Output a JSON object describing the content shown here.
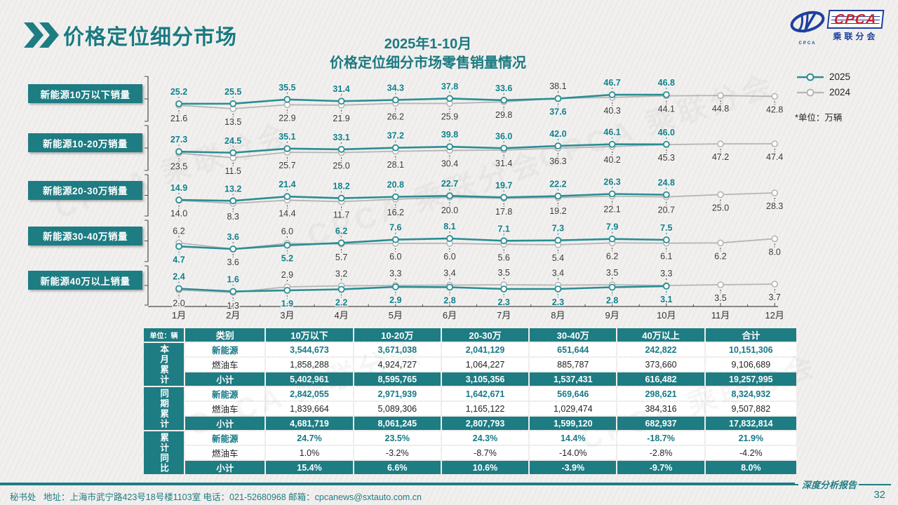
{
  "header": {
    "title": "价格定位细分市场",
    "chart_title_1": "2025年1-10月",
    "chart_title_2": "价格定位细分市场零售销量情况",
    "logo_text": "CPCA",
    "logo_sub": "乘联分会",
    "logo_mark_caption": "CPCA"
  },
  "legend": {
    "items": [
      {
        "label": "2025"
      },
      {
        "label": "2024"
      }
    ],
    "unit_note": "*单位：万辆"
  },
  "colors": {
    "accent": "#1e7c83",
    "line_2025": "#2a8d94",
    "line_2024": "#b5b5b5",
    "label_2025": "#11808d",
    "label_2024": "#3b3b3b",
    "axis": "#4a4a4a",
    "logo_blue": "#1d3f9e",
    "logo_red": "#cf2329"
  },
  "watermark_text": "CPCA 乘联分会",
  "chart_data": {
    "type": "line",
    "title": "2025年1-10月 价格定位细分市场零售销量情况",
    "unit": "万辆",
    "legend_position": "top-right",
    "grid": false,
    "x_labels": [
      "1月",
      "2月",
      "3月",
      "4月",
      "5月",
      "6月",
      "7月",
      "8月",
      "9月",
      "10月",
      "11月",
      "12月"
    ],
    "panels": [
      {
        "label": "新能源10万以下销量",
        "series": [
          {
            "name": "2025",
            "values": [
              25.2,
              25.5,
              35.5,
              31.4,
              34.3,
              37.8,
              33.6,
              37.6,
              46.7,
              46.8
            ]
          },
          {
            "name": "2024",
            "values": [
              21.6,
              13.5,
              22.9,
              21.9,
              26.2,
              25.9,
              29.8,
              38.1,
              40.3,
              44.1,
              44.8,
              42.8
            ]
          }
        ]
      },
      {
        "label": "新能源10-20万销量",
        "series": [
          {
            "name": "2025",
            "values": [
              27.3,
              24.5,
              35.1,
              33.1,
              37.2,
              39.8,
              36.0,
              42.0,
              46.1,
              46.0
            ]
          },
          {
            "name": "2024",
            "values": [
              23.5,
              11.5,
              25.7,
              25.0,
              28.1,
              30.4,
              31.4,
              36.3,
              40.2,
              45.3,
              47.2,
              47.4
            ]
          }
        ]
      },
      {
        "label": "新能源20-30万销量",
        "series": [
          {
            "name": "2025",
            "values": [
              14.9,
              13.2,
              21.4,
              18.2,
              20.8,
              22.7,
              19.7,
              22.2,
              26.3,
              24.8
            ]
          },
          {
            "name": "2024",
            "values": [
              14.0,
              8.3,
              14.4,
              11.7,
              16.2,
              20.0,
              17.8,
              19.2,
              22.1,
              20.7,
              25.0,
              28.3
            ]
          }
        ]
      },
      {
        "label": "新能源30-40万销量",
        "series": [
          {
            "name": "2025",
            "values": [
              4.7,
              3.6,
              5.2,
              6.2,
              7.6,
              8.1,
              7.1,
              7.3,
              7.9,
              7.5
            ]
          },
          {
            "name": "2024",
            "values": [
              6.2,
              3.6,
              6.0,
              5.7,
              6.0,
              6.0,
              5.6,
              5.4,
              6.2,
              6.1,
              6.2,
              8.0
            ]
          }
        ]
      },
      {
        "label": "新能源40万以上销量",
        "series": [
          {
            "name": "2025",
            "values": [
              2.4,
              1.6,
              1.9,
              2.2,
              2.9,
              2.8,
              2.3,
              2.3,
              2.8,
              3.1
            ]
          },
          {
            "name": "2024",
            "values": [
              2.0,
              1.3,
              2.9,
              3.2,
              3.3,
              3.4,
              3.5,
              3.4,
              3.5,
              3.3,
              3.5,
              3.7
            ]
          }
        ]
      }
    ]
  },
  "table": {
    "unit_label": "单位：辆",
    "columns": [
      "类别",
      "10万以下",
      "10-20万",
      "20-30万",
      "30-40万",
      "40万以上",
      "合计"
    ],
    "groups": [
      {
        "name": "本月累计",
        "rows": [
          {
            "label": "新能源",
            "style": "nev",
            "cells": [
              "3,544,673",
              "3,671,038",
              "2,041,129",
              "651,644",
              "242,822",
              "10,151,306"
            ]
          },
          {
            "label": "燃油车",
            "style": "ice",
            "cells": [
              "1,858,288",
              "4,924,727",
              "1,064,227",
              "885,787",
              "373,660",
              "9,106,689"
            ]
          },
          {
            "label": "小计",
            "style": "sub",
            "cells": [
              "5,402,961",
              "8,595,765",
              "3,105,356",
              "1,537,431",
              "616,482",
              "19,257,995"
            ]
          }
        ]
      },
      {
        "name": "同期累计",
        "rows": [
          {
            "label": "新能源",
            "style": "nev",
            "cells": [
              "2,842,055",
              "2,971,939",
              "1,642,671",
              "569,646",
              "298,621",
              "8,324,932"
            ]
          },
          {
            "label": "燃油车",
            "style": "ice",
            "cells": [
              "1,839,664",
              "5,089,306",
              "1,165,122",
              "1,029,474",
              "384,316",
              "9,507,882"
            ]
          },
          {
            "label": "小计",
            "style": "sub",
            "cells": [
              "4,681,719",
              "8,061,245",
              "2,807,793",
              "1,599,120",
              "682,937",
              "17,832,814"
            ]
          }
        ]
      },
      {
        "name": "累计同比",
        "rows": [
          {
            "label": "新能源",
            "style": "nev",
            "cells": [
              "24.7%",
              "23.5%",
              "24.3%",
              "14.4%",
              "-18.7%",
              "21.9%"
            ]
          },
          {
            "label": "燃油车",
            "style": "ice",
            "cells": [
              "1.0%",
              "-3.2%",
              "-8.7%",
              "-14.0%",
              "-2.8%",
              "-4.2%"
            ]
          },
          {
            "label": "小计",
            "style": "sub",
            "cells": [
              "15.4%",
              "6.6%",
              "10.6%",
              "-3.9%",
              "-9.7%",
              "8.0%"
            ]
          }
        ]
      }
    ]
  },
  "footer": {
    "secretariat": "秘书处",
    "info": "地址：上海市武宁路423号18号楼1103室  电话：021-52680968   邮箱：cpcanews@sxtauto.com.cn",
    "report_tag": "深度分析报告",
    "page": "32"
  }
}
